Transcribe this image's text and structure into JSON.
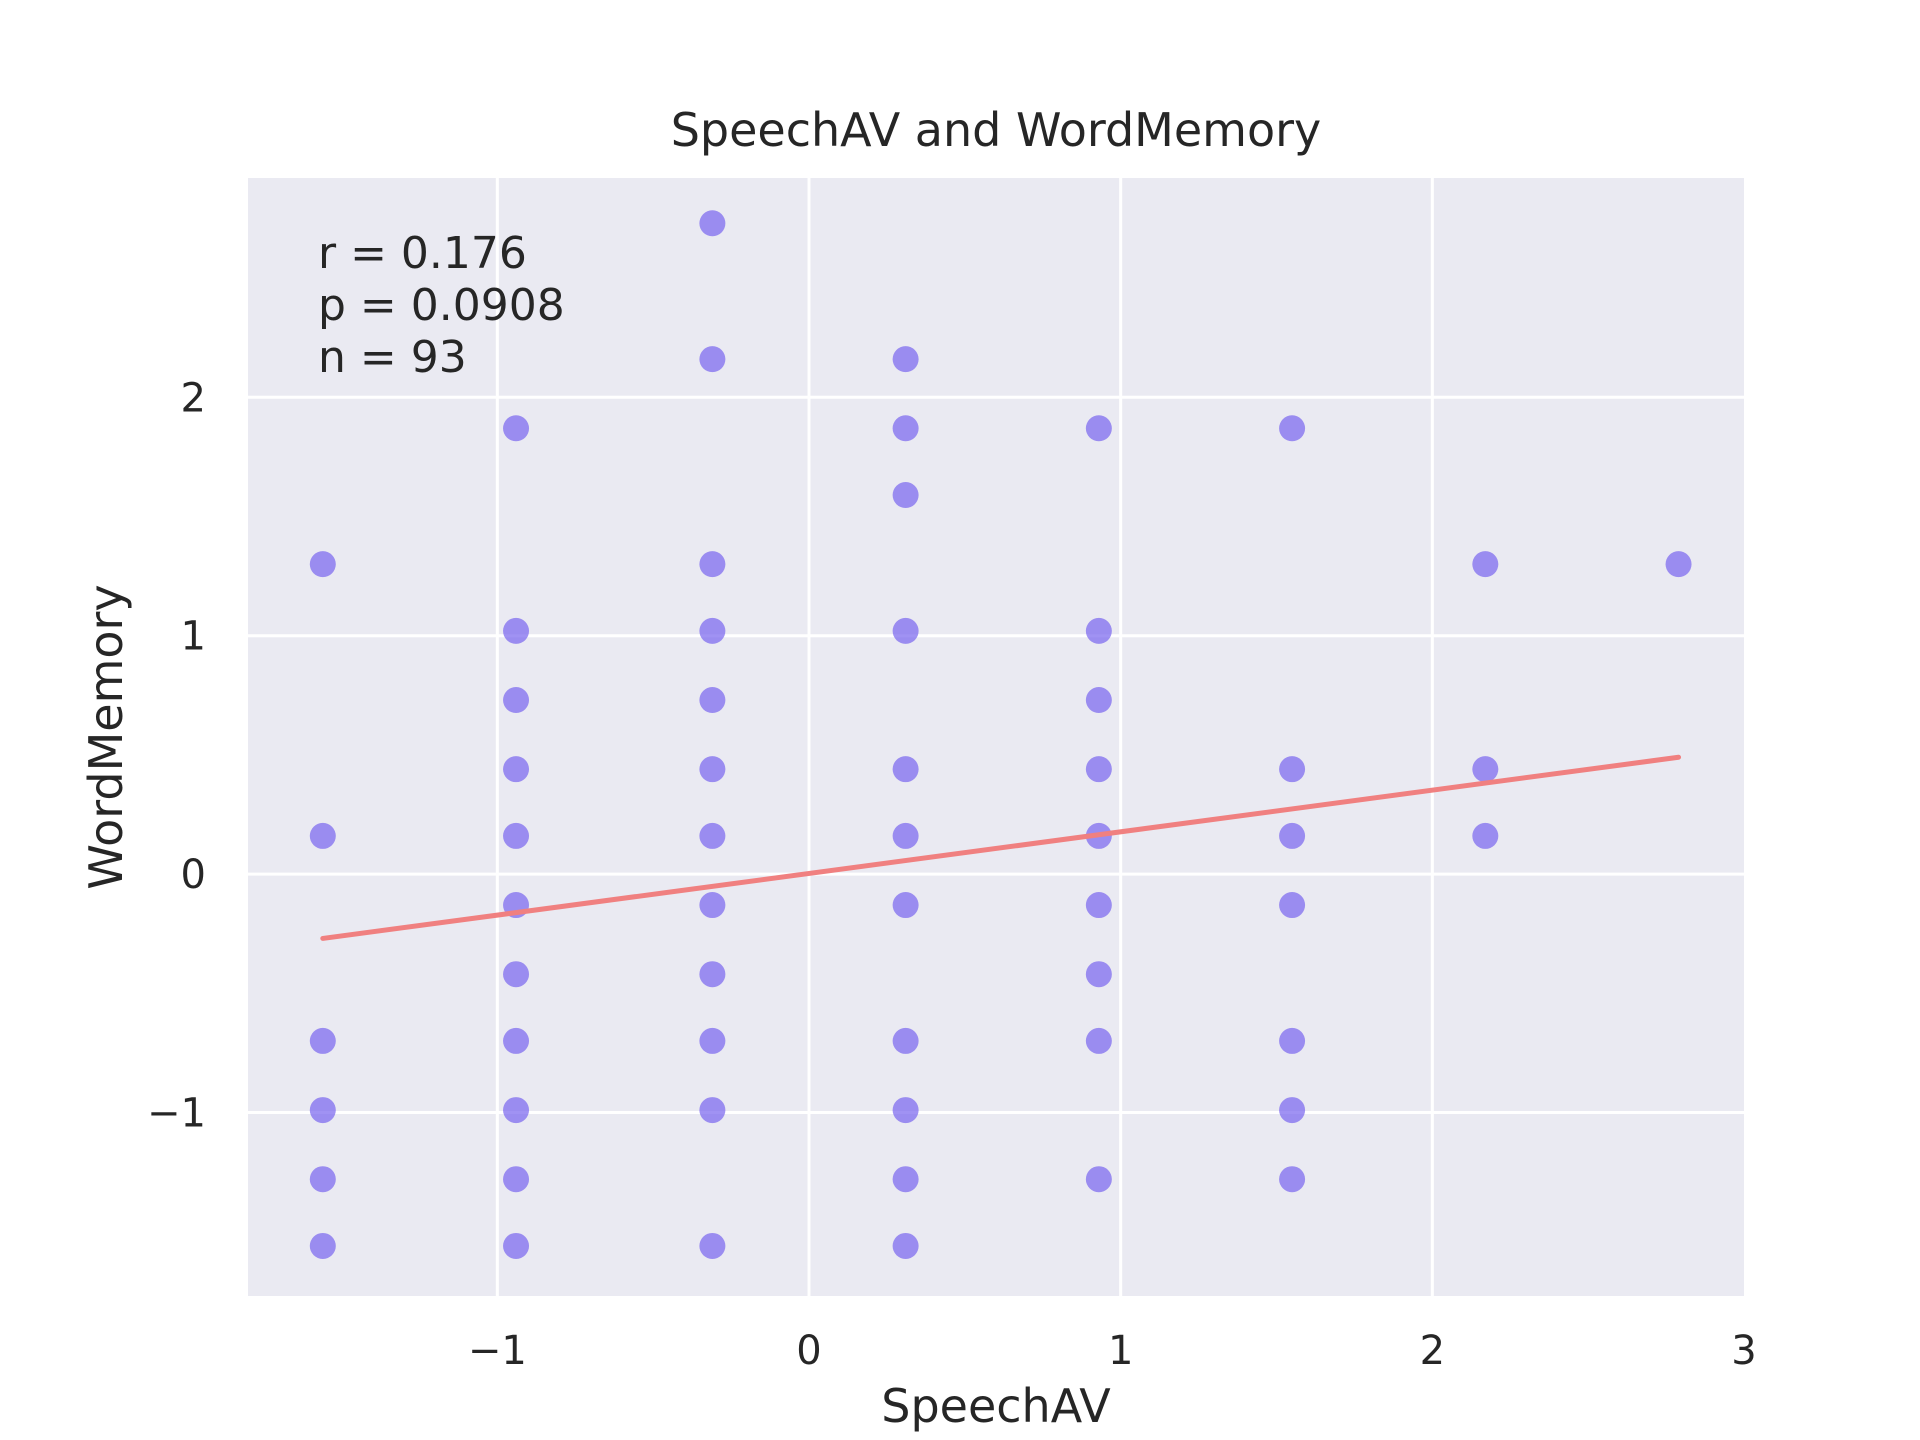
{
  "chart_data": {
    "type": "scatter",
    "title": "SpeechAV and WordMemory",
    "xlabel": "SpeechAV",
    "ylabel": "WordMemory",
    "xlim": [
      -1.8,
      3.0
    ],
    "ylim": [
      -1.77,
      2.92
    ],
    "xticks": [
      -1,
      0,
      1,
      2,
      3
    ],
    "xtick_labels": [
      "−1",
      "0",
      "1",
      "2",
      "3"
    ],
    "yticks": [
      -1,
      0,
      1,
      2
    ],
    "ytick_labels": [
      "−1",
      "0",
      "1",
      "2"
    ],
    "grid": true,
    "stats_lines": [
      "r = 0.176",
      "p = 0.0908",
      "n = 93"
    ],
    "points": [
      {
        "x": -1.56,
        "y": 1.3
      },
      {
        "x": -1.56,
        "y": 0.16
      },
      {
        "x": -1.56,
        "y": -0.7
      },
      {
        "x": -1.56,
        "y": -0.99
      },
      {
        "x": -1.56,
        "y": -1.28
      },
      {
        "x": -1.56,
        "y": -1.56
      },
      {
        "x": -0.94,
        "y": 1.87
      },
      {
        "x": -0.94,
        "y": 1.02
      },
      {
        "x": -0.94,
        "y": 0.73
      },
      {
        "x": -0.94,
        "y": 0.44
      },
      {
        "x": -0.94,
        "y": 0.16
      },
      {
        "x": -0.94,
        "y": -0.13
      },
      {
        "x": -0.94,
        "y": -0.42
      },
      {
        "x": -0.94,
        "y": -0.7
      },
      {
        "x": -0.94,
        "y": -0.99
      },
      {
        "x": -0.94,
        "y": -1.28
      },
      {
        "x": -0.94,
        "y": -1.56
      },
      {
        "x": -0.31,
        "y": 2.73
      },
      {
        "x": -0.31,
        "y": 2.16
      },
      {
        "x": -0.31,
        "y": 1.3
      },
      {
        "x": -0.31,
        "y": 1.02
      },
      {
        "x": -0.31,
        "y": 0.73
      },
      {
        "x": -0.31,
        "y": 0.44
      },
      {
        "x": -0.31,
        "y": 0.16
      },
      {
        "x": -0.31,
        "y": -0.13
      },
      {
        "x": -0.31,
        "y": -0.42
      },
      {
        "x": -0.31,
        "y": -0.7
      },
      {
        "x": -0.31,
        "y": -0.99
      },
      {
        "x": -0.31,
        "y": -1.56
      },
      {
        "x": 0.31,
        "y": 2.16
      },
      {
        "x": 0.31,
        "y": 1.87
      },
      {
        "x": 0.31,
        "y": 1.59
      },
      {
        "x": 0.31,
        "y": 1.02
      },
      {
        "x": 0.31,
        "y": 0.44
      },
      {
        "x": 0.31,
        "y": 0.16
      },
      {
        "x": 0.31,
        "y": -0.13
      },
      {
        "x": 0.31,
        "y": -0.7
      },
      {
        "x": 0.31,
        "y": -0.99
      },
      {
        "x": 0.31,
        "y": -1.28
      },
      {
        "x": 0.31,
        "y": -1.56
      },
      {
        "x": 0.93,
        "y": 1.87
      },
      {
        "x": 0.93,
        "y": 1.02
      },
      {
        "x": 0.93,
        "y": 0.73
      },
      {
        "x": 0.93,
        "y": 0.44
      },
      {
        "x": 0.93,
        "y": 0.16
      },
      {
        "x": 0.93,
        "y": -0.13
      },
      {
        "x": 0.93,
        "y": -0.42
      },
      {
        "x": 0.93,
        "y": -0.7
      },
      {
        "x": 0.93,
        "y": -1.28
      },
      {
        "x": 1.55,
        "y": 1.87
      },
      {
        "x": 1.55,
        "y": 0.44
      },
      {
        "x": 1.55,
        "y": 0.16
      },
      {
        "x": 1.55,
        "y": -0.13
      },
      {
        "x": 1.55,
        "y": -0.7
      },
      {
        "x": 1.55,
        "y": -0.99
      },
      {
        "x": 1.55,
        "y": -1.28
      },
      {
        "x": 2.17,
        "y": 1.3
      },
      {
        "x": 2.17,
        "y": 0.44
      },
      {
        "x": 2.17,
        "y": 0.16
      },
      {
        "x": 2.79,
        "y": 1.3
      }
    ],
    "fit_line": {
      "x": [
        -1.56,
        2.79
      ],
      "y": [
        -0.27,
        0.49
      ]
    },
    "colors": {
      "background": "#eaeaf2",
      "grid": "#ffffff",
      "points": "#7b68ee",
      "fit_line": "#f08080"
    }
  }
}
